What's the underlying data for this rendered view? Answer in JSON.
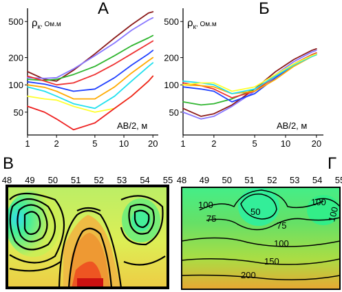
{
  "chart_data": [
    {
      "type": "line",
      "panel": "А",
      "title": "А",
      "ylabel_symbol": "ρ",
      "ylabel_sub": "к",
      "ylabel_unit": ", Ом.м",
      "xlabel": "AB/2, м",
      "x_scale": "log",
      "y_scale": "log",
      "xlim": [
        1,
        22
      ],
      "ylim": [
        28,
        700
      ],
      "x_ticks": [
        1,
        2,
        5,
        10,
        20
      ],
      "y_ticks": [
        50,
        100,
        200,
        500
      ],
      "series": [
        {
          "color": "#8b1a1a",
          "points": [
            [
              1,
              140
            ],
            [
              1.5,
              115
            ],
            [
              2,
              110
            ],
            [
              3,
              145
            ],
            [
              5,
              220
            ],
            [
              8,
              330
            ],
            [
              12,
              460
            ],
            [
              18,
              620
            ],
            [
              20,
              640
            ]
          ]
        },
        {
          "color": "#8877ff",
          "points": [
            [
              1,
              120
            ],
            [
              1.5,
              118
            ],
            [
              2,
              120
            ],
            [
              3,
              150
            ],
            [
              5,
              210
            ],
            [
              8,
              290
            ],
            [
              12,
              400
            ],
            [
              18,
              520
            ],
            [
              20,
              550
            ]
          ]
        },
        {
          "color": "#2fb52f",
          "points": [
            [
              1,
              115
            ],
            [
              1.5,
              112
            ],
            [
              2,
              115
            ],
            [
              3,
              130
            ],
            [
              5,
              160
            ],
            [
              8,
              210
            ],
            [
              12,
              270
            ],
            [
              18,
              330
            ],
            [
              20,
              350
            ]
          ]
        },
        {
          "color": "#ee3030",
          "points": [
            [
              1,
              125
            ],
            [
              1.5,
              110
            ],
            [
              2,
              100
            ],
            [
              3,
              105
            ],
            [
              5,
              130
            ],
            [
              8,
              170
            ],
            [
              12,
              220
            ],
            [
              18,
              285
            ],
            [
              20,
              305
            ]
          ]
        },
        {
          "color": "#2040ff",
          "points": [
            [
              1,
              108
            ],
            [
              1.5,
              102
            ],
            [
              2,
              95
            ],
            [
              3,
              85
            ],
            [
              5,
              90
            ],
            [
              8,
              120
            ],
            [
              12,
              165
            ],
            [
              18,
              220
            ],
            [
              20,
              240
            ]
          ]
        },
        {
          "color": "#ffaa00",
          "points": [
            [
              1,
              100
            ],
            [
              1.5,
              94
            ],
            [
              2,
              85
            ],
            [
              3,
              70
            ],
            [
              5,
              70
            ],
            [
              8,
              95
            ],
            [
              12,
              135
            ],
            [
              18,
              185
            ],
            [
              20,
              200
            ]
          ]
        },
        {
          "color": "#20e0ee",
          "points": [
            [
              1,
              95
            ],
            [
              1.5,
              85
            ],
            [
              2,
              75
            ],
            [
              3,
              62
            ],
            [
              5,
              55
            ],
            [
              8,
              75
            ],
            [
              12,
              110
            ],
            [
              18,
              160
            ],
            [
              20,
              175
            ]
          ]
        },
        {
          "color": "#ffff30",
          "points": [
            [
              1,
              75
            ],
            [
              1.5,
              70
            ],
            [
              2,
              68
            ],
            [
              3,
              58
            ],
            [
              5,
              50
            ],
            [
              8,
              55
            ],
            [
              12,
              75
            ],
            [
              18,
              110
            ],
            [
              20,
              125
            ]
          ]
        },
        {
          "color": "#ee2020",
          "points": [
            [
              1,
              58
            ],
            [
              1.5,
              50
            ],
            [
              2,
              42
            ],
            [
              3,
              32
            ],
            [
              5,
              38
            ],
            [
              8,
              55
            ],
            [
              12,
              75
            ],
            [
              18,
              110
            ],
            [
              20,
              125
            ]
          ]
        }
      ]
    },
    {
      "type": "line",
      "panel": "Б",
      "title": "Б",
      "ylabel_symbol": "ρ",
      "ylabel_sub": "к",
      "ylabel_unit": ", Ом.м",
      "xlabel": "AB/2, м",
      "x_scale": "log",
      "y_scale": "log",
      "xlim": [
        1,
        22
      ],
      "ylim": [
        28,
        700
      ],
      "x_ticks": [
        1,
        2,
        5,
        10,
        20
      ],
      "y_ticks": [
        50,
        100,
        200,
        500
      ],
      "series": [
        {
          "color": "#8b1a1a",
          "points": [
            [
              1,
              55
            ],
            [
              1.5,
              45
            ],
            [
              2,
              48
            ],
            [
              3,
              60
            ],
            [
              5,
              90
            ],
            [
              8,
              140
            ],
            [
              12,
              190
            ],
            [
              18,
              240
            ],
            [
              20,
              250
            ]
          ]
        },
        {
          "color": "#8877ff",
          "points": [
            [
              1,
              50
            ],
            [
              1.5,
              42
            ],
            [
              2,
              45
            ],
            [
              3,
              58
            ],
            [
              5,
              85
            ],
            [
              8,
              130
            ],
            [
              12,
              180
            ],
            [
              18,
              230
            ],
            [
              20,
              240
            ]
          ]
        },
        {
          "color": "#2fb52f",
          "points": [
            [
              1,
              65
            ],
            [
              1.5,
              60
            ],
            [
              2,
              62
            ],
            [
              3,
              70
            ],
            [
              5,
              90
            ],
            [
              8,
              125
            ],
            [
              12,
              170
            ],
            [
              18,
              215
            ],
            [
              20,
              225
            ]
          ]
        },
        {
          "color": "#ee3030",
          "points": [
            [
              1,
              105
            ],
            [
              1.5,
              98
            ],
            [
              2,
              90
            ],
            [
              3,
              72
            ],
            [
              5,
              85
            ],
            [
              8,
              125
            ],
            [
              12,
              170
            ],
            [
              18,
              215
            ],
            [
              20,
              225
            ]
          ]
        },
        {
          "color": "#2040ff",
          "points": [
            [
              1,
              95
            ],
            [
              1.5,
              90
            ],
            [
              2,
              85
            ],
            [
              3,
              65
            ],
            [
              5,
              80
            ],
            [
              8,
              120
            ],
            [
              12,
              165
            ],
            [
              18,
              210
            ],
            [
              20,
              220
            ]
          ]
        },
        {
          "color": "#ffaa00",
          "points": [
            [
              1,
              100
            ],
            [
              1.5,
              98
            ],
            [
              2,
              95
            ],
            [
              3,
              80
            ],
            [
              5,
              85
            ],
            [
              8,
              115
            ],
            [
              12,
              160
            ],
            [
              18,
              205
            ],
            [
              20,
              215
            ]
          ]
        },
        {
          "color": "#20e0ee",
          "points": [
            [
              1,
              110
            ],
            [
              1.5,
              105
            ],
            [
              2,
              100
            ],
            [
              3,
              80
            ],
            [
              5,
              90
            ],
            [
              8,
              125
            ],
            [
              12,
              165
            ],
            [
              18,
              205
            ],
            [
              20,
              215
            ]
          ]
        },
        {
          "color": "#ffff30",
          "points": [
            [
              1,
              100
            ],
            [
              1.5,
              105
            ],
            [
              2,
              105
            ],
            [
              3,
              85
            ],
            [
              5,
              95
            ],
            [
              8,
              130
            ],
            [
              12,
              170
            ],
            [
              18,
              210
            ],
            [
              20,
              220
            ]
          ]
        }
      ]
    },
    {
      "type": "heatmap",
      "panel": "В",
      "title": "В",
      "x_ticks": [
        48,
        49,
        50,
        51,
        52,
        53,
        54,
        55
      ]
    },
    {
      "type": "heatmap",
      "panel": "Г",
      "title": "Г",
      "x_ticks": [
        48,
        49,
        50,
        51,
        52,
        53,
        54,
        55
      ],
      "contour_labels": [
        "100",
        "75",
        "50",
        "75",
        "100",
        "100",
        "100",
        "150",
        "200"
      ]
    }
  ]
}
